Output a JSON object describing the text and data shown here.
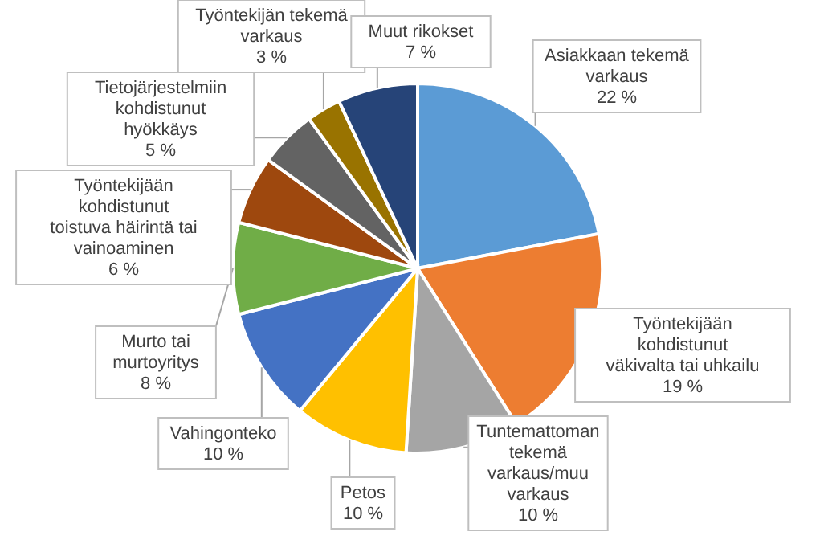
{
  "chart_data": {
    "type": "pie",
    "categories": [
      "Asiakkaan tekemä varkaus",
      "Työntekijään kohdistunut väkivalta tai uhkailu",
      "Tuntemattoman tekemä varkaus/muu varkaus",
      "Petos",
      "Vahingonteko",
      "Murto tai murtoyritys",
      "Työntekijään kohdistunut toistuva häirintä tai vainoaminen",
      "Tietojärjestelmiin kohdistunut hyökkäys",
      "Työntekijän tekemä varkaus",
      "Muut rikokset"
    ],
    "values": [
      22,
      19,
      10,
      10,
      10,
      8,
      6,
      5,
      3,
      7
    ],
    "value_labels": [
      "22 %",
      "19 %",
      "10 %",
      "10 %",
      "10 %",
      "8 %",
      "6 %",
      "5 %",
      "3 %",
      "7 %"
    ],
    "colors": [
      "#5b9bd5",
      "#ed7d31",
      "#a5a5a5",
      "#ffc000",
      "#4472c4",
      "#70ad47",
      "#9e480e",
      "#636363",
      "#997300",
      "#264478"
    ],
    "legend": false
  }
}
